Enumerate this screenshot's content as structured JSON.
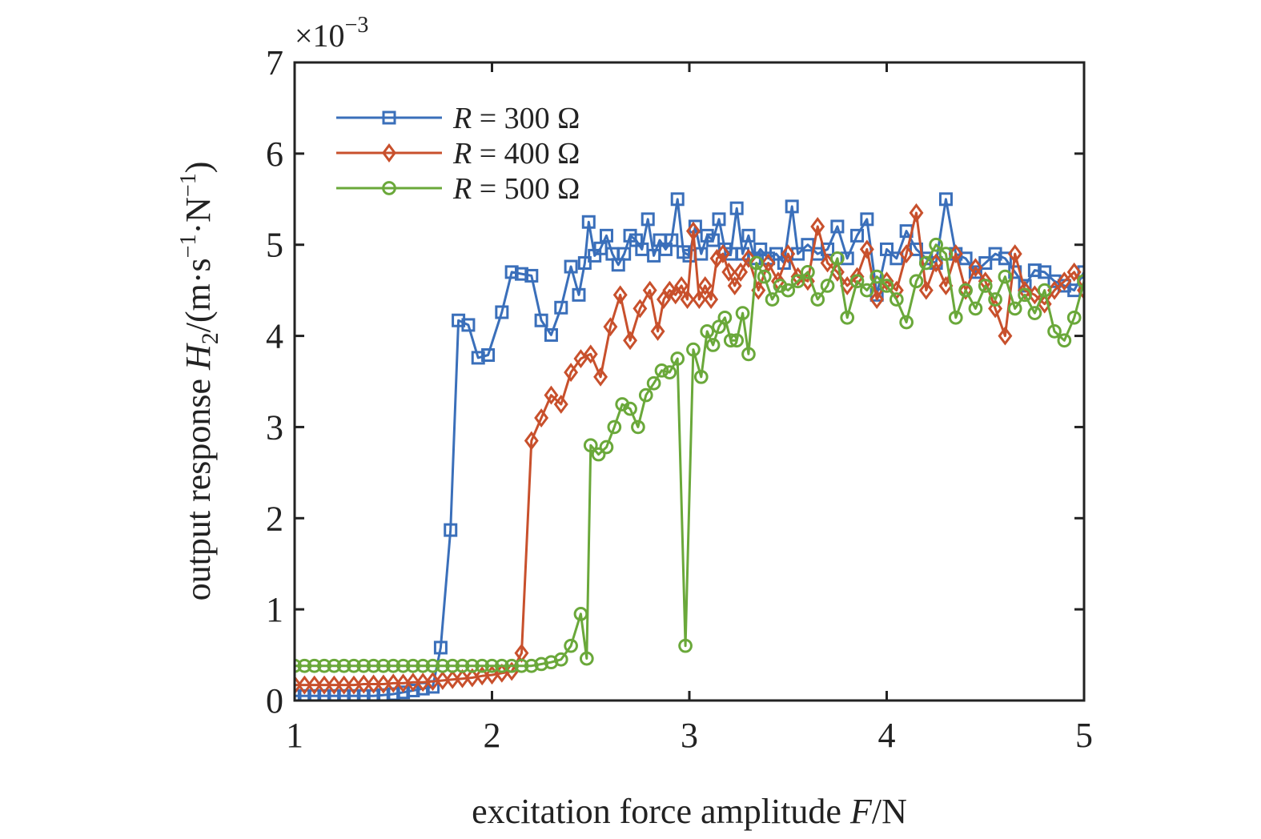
{
  "chart_data": {
    "type": "line",
    "title": "",
    "xlabel": {
      "prefix": "excitation force amplitude ",
      "var": "F",
      "unit": "/N"
    },
    "ylabel": {
      "prefix": "output response ",
      "var": "H",
      "sub": "2",
      "unit_open": "/(m·s",
      "exp1": "−1",
      "unit_mid": "·N",
      "exp2": "−1",
      "unit_close": ")"
    },
    "multiplier": {
      "base": "×10",
      "exp": "−3"
    },
    "xlim": [
      1,
      5
    ],
    "ylim": [
      0,
      7
    ],
    "xticks": [
      1,
      2,
      3,
      4,
      5
    ],
    "yticks": [
      0,
      1,
      2,
      3,
      4,
      5,
      6,
      7
    ],
    "grid": false,
    "legend_position": "top-left",
    "series": [
      {
        "legend": {
          "var": "R",
          "rest": " = 300 Ω"
        },
        "color": "#3a6fba",
        "marker": "square",
        "x": [
          1.0,
          1.05,
          1.1,
          1.15,
          1.2,
          1.25,
          1.3,
          1.35,
          1.4,
          1.45,
          1.5,
          1.55,
          1.6,
          1.65,
          1.7,
          1.74,
          1.79,
          1.83,
          1.88,
          1.93,
          1.98,
          2.05,
          2.1,
          2.15,
          2.2,
          2.25,
          2.3,
          2.35,
          2.4,
          2.44,
          2.47,
          2.49,
          2.52,
          2.55,
          2.58,
          2.61,
          2.64,
          2.67,
          2.7,
          2.73,
          2.76,
          2.79,
          2.82,
          2.85,
          2.88,
          2.91,
          2.94,
          2.97,
          3.0,
          3.03,
          3.06,
          3.09,
          3.12,
          3.15,
          3.18,
          3.21,
          3.24,
          3.27,
          3.3,
          3.33,
          3.36,
          3.4,
          3.44,
          3.48,
          3.52,
          3.55,
          3.6,
          3.65,
          3.7,
          3.75,
          3.8,
          3.85,
          3.9,
          3.95,
          4.0,
          4.05,
          4.1,
          4.15,
          4.2,
          4.25,
          4.3,
          4.35,
          4.4,
          4.45,
          4.5,
          4.55,
          4.6,
          4.65,
          4.7,
          4.75,
          4.8,
          4.85,
          4.9,
          4.95,
          5.0
        ],
        "y": [
          0.05,
          0.05,
          0.05,
          0.05,
          0.05,
          0.05,
          0.05,
          0.05,
          0.05,
          0.06,
          0.07,
          0.09,
          0.11,
          0.13,
          0.15,
          0.58,
          1.87,
          4.17,
          4.12,
          3.76,
          3.79,
          4.26,
          4.7,
          4.68,
          4.66,
          4.17,
          4.01,
          4.31,
          4.76,
          4.45,
          4.8,
          5.25,
          4.88,
          4.96,
          5.1,
          4.9,
          4.78,
          4.9,
          5.1,
          5.05,
          4.95,
          5.28,
          4.88,
          5.05,
          4.95,
          5.05,
          5.5,
          4.92,
          4.88,
          5.2,
          4.9,
          5.1,
          5.05,
          5.28,
          4.95,
          4.9,
          5.4,
          4.9,
          5.1,
          4.85,
          4.95,
          4.85,
          4.9,
          4.8,
          5.42,
          4.9,
          5.0,
          4.9,
          4.95,
          5.2,
          4.85,
          5.1,
          5.28,
          4.45,
          4.95,
          4.85,
          5.15,
          4.95,
          4.85,
          4.8,
          5.5,
          4.9,
          4.85,
          4.7,
          4.8,
          4.9,
          4.85,
          4.7,
          4.55,
          4.72,
          4.7,
          4.6,
          4.55,
          4.5,
          4.7
        ]
      },
      {
        "legend": {
          "var": "R",
          "rest": " = 400 Ω"
        },
        "color": "#c8502c",
        "marker": "diamond",
        "x": [
          1.0,
          1.05,
          1.1,
          1.15,
          1.2,
          1.25,
          1.3,
          1.35,
          1.4,
          1.45,
          1.5,
          1.55,
          1.6,
          1.65,
          1.7,
          1.75,
          1.8,
          1.85,
          1.9,
          1.95,
          2.0,
          2.05,
          2.1,
          2.15,
          2.2,
          2.25,
          2.3,
          2.35,
          2.4,
          2.45,
          2.5,
          2.55,
          2.6,
          2.65,
          2.7,
          2.75,
          2.8,
          2.84,
          2.87,
          2.9,
          2.93,
          2.96,
          2.99,
          3.02,
          3.05,
          3.08,
          3.11,
          3.14,
          3.17,
          3.2,
          3.23,
          3.26,
          3.3,
          3.35,
          3.4,
          3.45,
          3.5,
          3.55,
          3.6,
          3.65,
          3.7,
          3.75,
          3.8,
          3.85,
          3.9,
          3.95,
          4.0,
          4.05,
          4.1,
          4.15,
          4.2,
          4.25,
          4.3,
          4.35,
          4.4,
          4.45,
          4.5,
          4.55,
          4.6,
          4.65,
          4.7,
          4.75,
          4.8,
          4.85,
          4.9,
          4.95,
          5.0
        ],
        "y": [
          0.17,
          0.17,
          0.17,
          0.17,
          0.17,
          0.17,
          0.17,
          0.18,
          0.18,
          0.18,
          0.19,
          0.19,
          0.2,
          0.2,
          0.21,
          0.22,
          0.23,
          0.24,
          0.25,
          0.27,
          0.28,
          0.3,
          0.32,
          0.52,
          2.85,
          3.1,
          3.35,
          3.25,
          3.6,
          3.75,
          3.8,
          3.55,
          4.1,
          4.45,
          3.95,
          4.3,
          4.5,
          4.05,
          4.4,
          4.5,
          4.45,
          4.55,
          4.4,
          5.15,
          4.4,
          4.55,
          4.4,
          4.85,
          4.9,
          4.7,
          4.55,
          4.7,
          4.85,
          4.5,
          4.8,
          4.6,
          4.9,
          4.65,
          4.6,
          5.2,
          4.8,
          4.7,
          4.55,
          4.65,
          4.95,
          4.4,
          4.6,
          4.5,
          4.9,
          5.35,
          4.5,
          4.8,
          4.55,
          4.9,
          4.5,
          4.75,
          4.6,
          4.3,
          4.0,
          4.9,
          4.5,
          4.45,
          4.35,
          4.5,
          4.6,
          4.7,
          4.5
        ]
      },
      {
        "legend": {
          "var": "R",
          "rest": " = 500 Ω"
        },
        "color": "#6aa83a",
        "marker": "circle",
        "x": [
          1.0,
          1.05,
          1.1,
          1.15,
          1.2,
          1.25,
          1.3,
          1.35,
          1.4,
          1.45,
          1.5,
          1.55,
          1.6,
          1.65,
          1.7,
          1.75,
          1.8,
          1.85,
          1.9,
          1.95,
          2.0,
          2.05,
          2.1,
          2.15,
          2.2,
          2.25,
          2.3,
          2.35,
          2.4,
          2.45,
          2.48,
          2.5,
          2.54,
          2.58,
          2.62,
          2.66,
          2.7,
          2.74,
          2.78,
          2.82,
          2.86,
          2.9,
          2.94,
          2.98,
          3.02,
          3.06,
          3.09,
          3.12,
          3.15,
          3.18,
          3.21,
          3.24,
          3.27,
          3.3,
          3.34,
          3.38,
          3.42,
          3.46,
          3.5,
          3.55,
          3.6,
          3.65,
          3.7,
          3.75,
          3.8,
          3.85,
          3.9,
          3.95,
          4.0,
          4.05,
          4.1,
          4.15,
          4.2,
          4.25,
          4.3,
          4.35,
          4.4,
          4.45,
          4.5,
          4.55,
          4.6,
          4.65,
          4.7,
          4.75,
          4.8,
          4.85,
          4.9,
          4.95,
          5.0
        ],
        "y": [
          0.38,
          0.38,
          0.38,
          0.38,
          0.38,
          0.38,
          0.38,
          0.38,
          0.38,
          0.38,
          0.38,
          0.38,
          0.38,
          0.38,
          0.38,
          0.38,
          0.38,
          0.38,
          0.38,
          0.38,
          0.38,
          0.38,
          0.38,
          0.38,
          0.38,
          0.4,
          0.42,
          0.45,
          0.6,
          0.95,
          0.46,
          2.8,
          2.7,
          2.78,
          3.0,
          3.25,
          3.2,
          3.0,
          3.35,
          3.48,
          3.62,
          3.6,
          3.75,
          0.6,
          3.85,
          3.55,
          4.05,
          3.9,
          4.1,
          4.2,
          3.95,
          3.95,
          4.25,
          3.8,
          4.8,
          4.65,
          4.4,
          4.55,
          4.5,
          4.6,
          4.7,
          4.4,
          4.55,
          4.85,
          4.2,
          4.6,
          4.5,
          4.65,
          4.55,
          4.4,
          4.15,
          4.6,
          4.8,
          5.0,
          4.9,
          4.2,
          4.5,
          4.3,
          4.55,
          4.4,
          4.65,
          4.3,
          4.45,
          4.25,
          4.5,
          4.05,
          3.95,
          4.2,
          4.6
        ]
      }
    ]
  }
}
